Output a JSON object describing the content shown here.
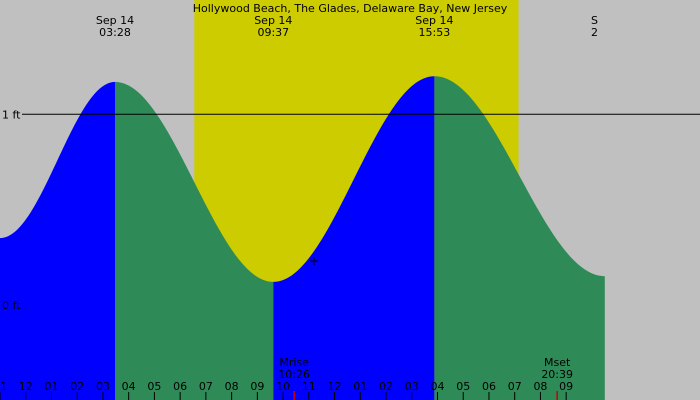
{
  "colors": {
    "background": "#c0c0c0",
    "daylight": "#cccc00",
    "rising": "#0000ff",
    "falling": "#2e8b57",
    "reference_line": "#000000",
    "moon_marker": "#cc0000"
  },
  "chart_data": {
    "type": "area",
    "title": "Hollywood Beach, The Glades, Delaware Bay, New Jersey",
    "x_unit": "hour of Sep 14",
    "xlim": [
      -1.0,
      26.2
    ],
    "ylim": [
      -0.5,
      1.6
    ],
    "daylight": {
      "start": 6.55,
      "end": 19.15
    },
    "events": [
      {
        "date": "Sep 14",
        "time": "03:28",
        "hour": 3.47,
        "height": 1.17
      },
      {
        "date": "Sep 14",
        "time": "09:37",
        "hour": 9.62,
        "height": 0.12
      },
      {
        "date": "Sep 14",
        "time": "15:53",
        "hour": 15.88,
        "height": 1.2
      },
      {
        "date": "S",
        "time": "2",
        "hour": 22.1,
        "height": 0.0
      }
    ],
    "tide_curve": [
      {
        "hour": -1.0,
        "height": 0.35
      },
      {
        "hour": 3.47,
        "height": 1.17
      },
      {
        "hour": 9.62,
        "height": 0.12
      },
      {
        "hour": 15.88,
        "height": 1.2
      },
      {
        "hour": 22.5,
        "height": 0.15
      }
    ],
    "y_ticks": [
      {
        "value": 1.0,
        "label": "1 ft"
      },
      {
        "value": 0.0,
        "label": "0 ft"
      }
    ],
    "reference_lines": [
      1.0
    ],
    "x_ticks": [
      {
        "hour": -1.0,
        "label": "11"
      },
      {
        "hour": 0.0,
        "label": "12"
      },
      {
        "hour": 1.0,
        "label": "01"
      },
      {
        "hour": 2.0,
        "label": "02"
      },
      {
        "hour": 3.0,
        "label": "03"
      },
      {
        "hour": 4.0,
        "label": "04"
      },
      {
        "hour": 5.0,
        "label": "05"
      },
      {
        "hour": 6.0,
        "label": "06"
      },
      {
        "hour": 7.0,
        "label": "07"
      },
      {
        "hour": 8.0,
        "label": "08"
      },
      {
        "hour": 9.0,
        "label": "09"
      },
      {
        "hour": 10.0,
        "label": "10"
      },
      {
        "hour": 11.0,
        "label": "11"
      },
      {
        "hour": 12.0,
        "label": "12"
      },
      {
        "hour": 13.0,
        "label": "01"
      },
      {
        "hour": 14.0,
        "label": "02"
      },
      {
        "hour": 15.0,
        "label": "03"
      },
      {
        "hour": 16.0,
        "label": "04"
      },
      {
        "hour": 17.0,
        "label": "05"
      },
      {
        "hour": 18.0,
        "label": "06"
      },
      {
        "hour": 19.0,
        "label": "07"
      },
      {
        "hour": 20.0,
        "label": "08"
      },
      {
        "hour": 21.0,
        "label": "09"
      }
    ],
    "moon": [
      {
        "label": "Mrise",
        "time": "10:26",
        "hour": 10.43
      },
      {
        "label": "Mset",
        "time": "20:39",
        "hour": 20.65
      }
    ],
    "markers": [
      {
        "hour": 11.2,
        "height": 0.23
      }
    ]
  }
}
